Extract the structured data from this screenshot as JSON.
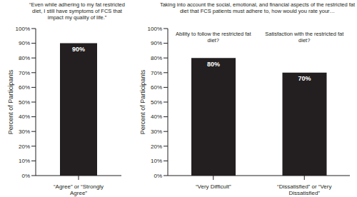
{
  "chart_data": [
    {
      "type": "bar",
      "title": "“Even while adhering to my fat restricted diet, I still have symptoms of FCS that impact my quality of life.”",
      "ylabel": "Percent of Participants",
      "categories": [
        "“Agree” or “Strongly Agree”"
      ],
      "values": [
        90
      ],
      "value_labels": [
        "90%"
      ],
      "color": "#231f20",
      "data_labels": true,
      "ylim": [
        0,
        100
      ],
      "yticks": [
        {
          "value": 0,
          "label": "0%"
        },
        {
          "value": 10,
          "label": "10%"
        },
        {
          "value": 20,
          "label": "20%"
        },
        {
          "value": 30,
          "label": "30%"
        },
        {
          "value": 40,
          "label": "40%"
        },
        {
          "value": 50,
          "label": "50%"
        },
        {
          "value": 60,
          "label": "60%"
        },
        {
          "value": 70,
          "label": "70%"
        },
        {
          "value": 80,
          "label": "80%"
        },
        {
          "value": 90,
          "label": "90%"
        },
        {
          "value": 100,
          "label": "100%"
        }
      ]
    },
    {
      "type": "bar",
      "title": "Taking into account the social, emotional, and financial aspects of the restricted fat diet that FCS patients must adhere to, how would you rate your…",
      "annotations": [
        "Ability to follow the restricted fat diet?",
        "Satisfaction with the restricted fat diet?"
      ],
      "ylabel": "Percent of Participants",
      "categories": [
        "“Very Difficult”",
        "“Dissatisfied” or “Very Dissatisfied”"
      ],
      "values": [
        80,
        70
      ],
      "value_labels": [
        "80%",
        "70%"
      ],
      "color": "#231f20",
      "data_labels": true,
      "ylim": [
        0,
        100
      ],
      "yticks": [
        {
          "value": 0,
          "label": "0%"
        },
        {
          "value": 10,
          "label": "10%"
        },
        {
          "value": 20,
          "label": "20%"
        },
        {
          "value": 30,
          "label": "30%"
        },
        {
          "value": 40,
          "label": "40%"
        },
        {
          "value": 50,
          "label": "50%"
        },
        {
          "value": 60,
          "label": "60%"
        },
        {
          "value": 70,
          "label": "70%"
        },
        {
          "value": 80,
          "label": "80%"
        },
        {
          "value": 90,
          "label": "90%"
        },
        {
          "value": 100,
          "label": "100%"
        }
      ]
    }
  ]
}
